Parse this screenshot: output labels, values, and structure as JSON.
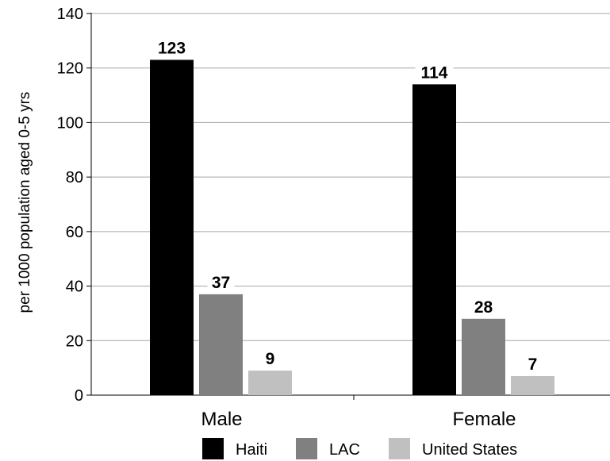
{
  "chart_data": {
    "type": "bar",
    "title": "",
    "xlabel": "",
    "ylabel": "per 1000 population aged 0-5 yrs",
    "categories": [
      "Male",
      "Female"
    ],
    "series": [
      {
        "name": "Haiti",
        "values": [
          123,
          114
        ],
        "color": "#000000"
      },
      {
        "name": "LAC",
        "values": [
          37,
          28
        ],
        "color": "#808080"
      },
      {
        "name": "United States",
        "values": [
          9,
          7
        ],
        "color": "#c0c0c0"
      }
    ],
    "ylim": [
      0,
      140
    ],
    "yticks": [
      0,
      20,
      40,
      60,
      80,
      100,
      120,
      140
    ],
    "grid": true,
    "legend": "bottom"
  }
}
